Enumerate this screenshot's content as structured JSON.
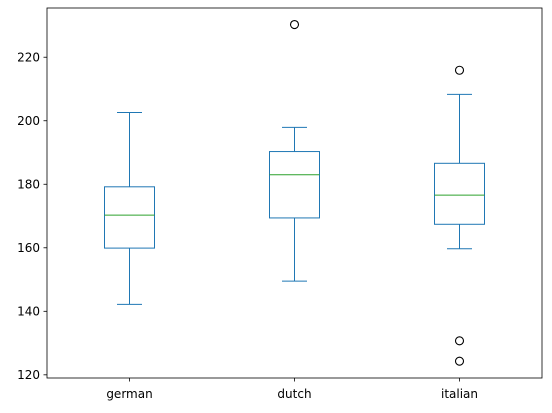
{
  "chart_data": {
    "type": "boxplot",
    "title": "",
    "xlabel": "",
    "ylabel": "",
    "ylim": [
      119,
      235.5
    ],
    "yticks": [
      120,
      140,
      160,
      180,
      200,
      220
    ],
    "grid": false,
    "categories": [
      "german",
      "dutch",
      "italian"
    ],
    "boxes": [
      {
        "name": "german",
        "whisker_low": 142.2,
        "q1": 159.9,
        "median": 170.3,
        "q3": 179.2,
        "whisker_high": 202.6,
        "outliers": []
      },
      {
        "name": "dutch",
        "whisker_low": 149.5,
        "q1": 169.4,
        "median": 183.0,
        "q3": 190.3,
        "whisker_high": 197.9,
        "outliers": [
          230.3
        ]
      },
      {
        "name": "italian",
        "whisker_low": 159.7,
        "q1": 167.4,
        "median": 176.6,
        "q3": 186.6,
        "whisker_high": 208.3,
        "outliers": [
          215.9,
          130.7,
          124.3
        ]
      }
    ],
    "colors": {
      "box": "#1f77b4",
      "median": "#2ca02c",
      "outlier": "#000000",
      "axis": "#000000"
    }
  }
}
